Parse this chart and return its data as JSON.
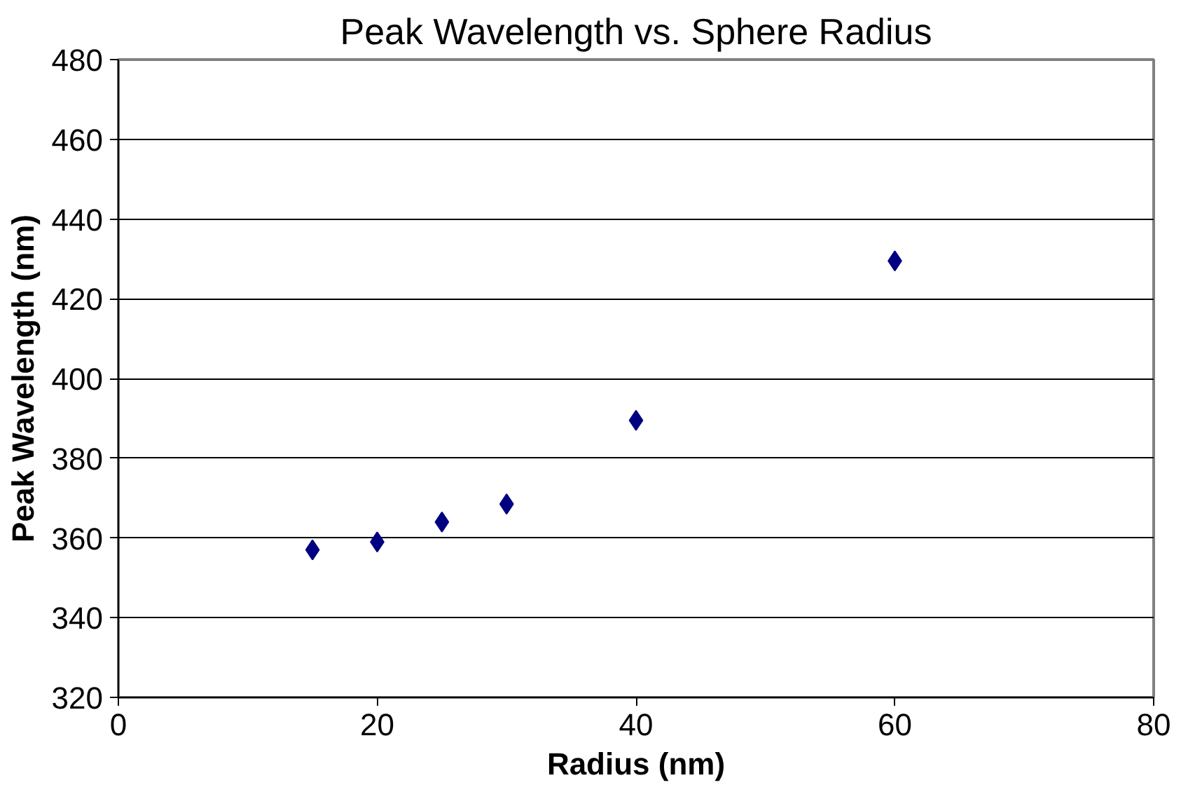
{
  "chart_data": {
    "type": "scatter",
    "title": "Peak Wavelength vs. Sphere Radius",
    "xlabel": "Radius (nm)",
    "ylabel": "Peak Wavelength (nm)",
    "x": [
      15,
      20,
      25,
      30,
      40,
      60
    ],
    "series": [
      {
        "color": "#000080",
        "values": [
          357,
          359,
          364,
          368.5,
          389.5,
          429.5
        ]
      }
    ],
    "xlim": [
      0,
      80
    ],
    "xticks": [
      0,
      20,
      40,
      60,
      80
    ],
    "ylim": [
      320,
      480
    ],
    "yticks": [
      320,
      340,
      360,
      380,
      400,
      420,
      440,
      460,
      480
    ],
    "grid": "y",
    "marker": "diamond"
  }
}
